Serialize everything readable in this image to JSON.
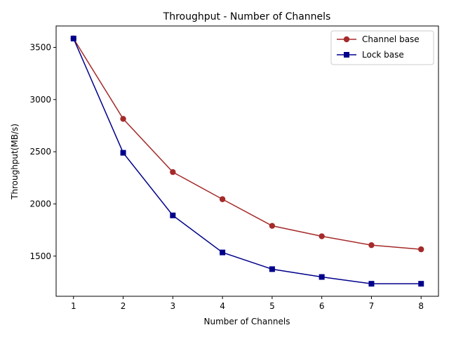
{
  "chart_data": {
    "type": "line",
    "title": "Throughput - Number of Channels",
    "xlabel": "Number of Channels",
    "ylabel": "Throughput(MB/s)",
    "x": [
      1,
      2,
      3,
      4,
      5,
      6,
      7,
      8
    ],
    "xlim": [
      0.65,
      8.35
    ],
    "ylim": [
      1115,
      3705
    ],
    "xticks": [
      1,
      2,
      3,
      4,
      5,
      6,
      7,
      8
    ],
    "yticks": [
      1500,
      2000,
      2500,
      3000,
      3500
    ],
    "grid": false,
    "legend_position": "top-right",
    "series": [
      {
        "name": "Channel base",
        "color": "#a52a2a",
        "marker": "circle",
        "values": [
          3585,
          2815,
          2305,
          2045,
          1790,
          1690,
          1605,
          1565
        ]
      },
      {
        "name": "Lock base",
        "color": "#00008b",
        "marker": "square",
        "values": [
          3585,
          2490,
          1890,
          1535,
          1375,
          1300,
          1235,
          1235
        ]
      }
    ]
  }
}
